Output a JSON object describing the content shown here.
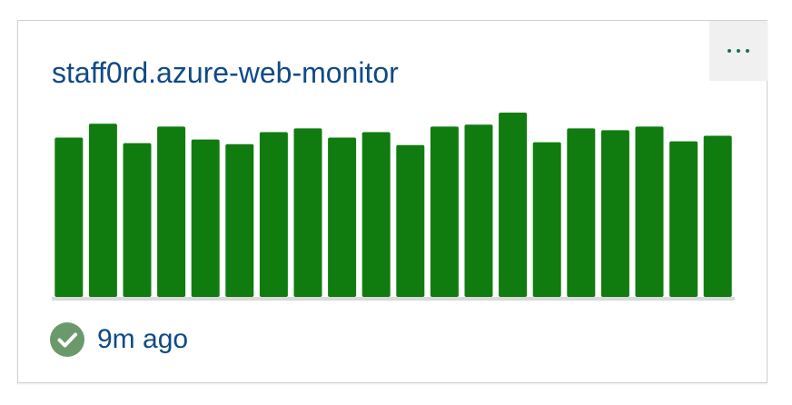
{
  "card": {
    "title": "staff0rd.azure-web-monitor",
    "more_button": {
      "icon": "more-horizontal-icon"
    }
  },
  "status": {
    "icon": "check-circle-icon",
    "text": "9m ago",
    "color": "#6a9a6c"
  },
  "chart_data": {
    "type": "bar",
    "bar_color": "#107c10",
    "baseline_color": "#d9d9d9",
    "values": [
      172,
      187,
      166,
      184,
      170,
      165,
      178,
      182,
      172,
      178,
      164,
      184,
      186,
      199,
      167,
      182,
      180,
      184,
      168,
      174
    ],
    "ylim": [
      0,
      200
    ]
  }
}
